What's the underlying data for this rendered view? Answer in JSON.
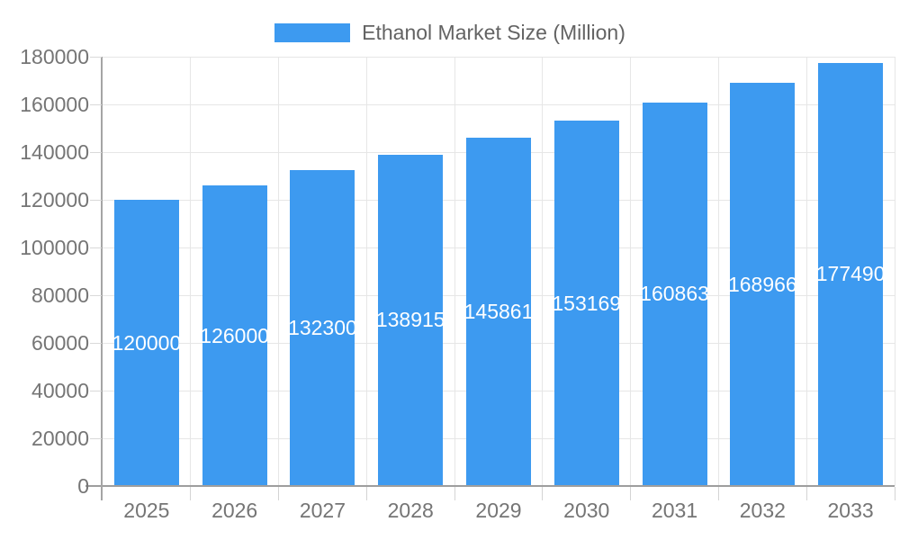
{
  "chart_data": {
    "type": "bar",
    "title": "",
    "xlabel": "",
    "ylabel": "",
    "legend_label": "Ethanol Market Size (Million)",
    "legend_position": "top-center",
    "categories": [
      "2025",
      "2026",
      "2027",
      "2028",
      "2029",
      "2030",
      "2031",
      "2032",
      "2033"
    ],
    "values": [
      120000,
      126000,
      132300,
      138915,
      145861,
      153169,
      160863,
      168966,
      177490
    ],
    "value_labels": [
      "120000",
      "126000",
      "132300",
      "138915",
      "145861",
      "153169",
      "160863",
      "168966",
      "177490"
    ],
    "ylim": [
      0,
      180000
    ],
    "ytick_step": 20000,
    "ytick_labels": [
      "0",
      "20000",
      "40000",
      "60000",
      "80000",
      "100000",
      "120000",
      "140000",
      "160000",
      "180000"
    ],
    "grid": true,
    "colors": {
      "bar": "#3d9af0",
      "axis_text": "#757575",
      "legend_text": "#636363",
      "gridline": "#e6e6e6",
      "axis_line": "#9e9e9e",
      "tick": "#d6d6d6",
      "bar_value_text": "#ffffff",
      "background": "#ffffff"
    }
  }
}
